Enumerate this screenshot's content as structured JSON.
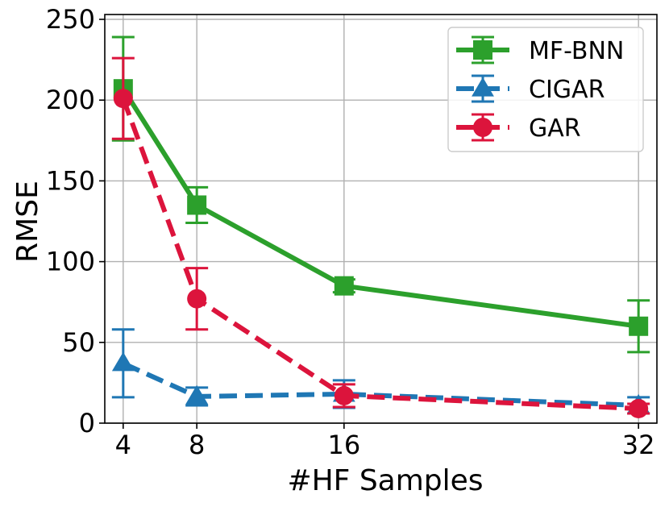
{
  "chart_data": {
    "type": "line",
    "title": "",
    "xlabel": "#HF Samples",
    "ylabel": "RMSE",
    "x": [
      4,
      8,
      16,
      32
    ],
    "xticks": [
      4,
      8,
      16,
      32
    ],
    "yticks": [
      0,
      50,
      100,
      150,
      200,
      250
    ],
    "xlim": [
      3.0,
      33.0
    ],
    "ylim": [
      0,
      253
    ],
    "grid": true,
    "legend_position": "top-right",
    "series": [
      {
        "name": "MF-BNN",
        "color": "#2ca02c",
        "marker": "square",
        "line_style": "solid",
        "values": [
          207,
          135,
          85,
          60
        ],
        "error": [
          32,
          11,
          4,
          16
        ]
      },
      {
        "name": "CIGAR",
        "color": "#1f77b4",
        "marker": "triangle",
        "line_style": "dashed",
        "values": [
          37,
          16.5,
          18,
          11
        ],
        "error": [
          21,
          5.5,
          8.5,
          5
        ]
      },
      {
        "name": "GAR",
        "color": "#dc143c",
        "marker": "circle",
        "line_style": "dashed",
        "values": [
          201,
          77,
          17,
          9
        ],
        "error": [
          25,
          19,
          7,
          3
        ]
      }
    ]
  }
}
